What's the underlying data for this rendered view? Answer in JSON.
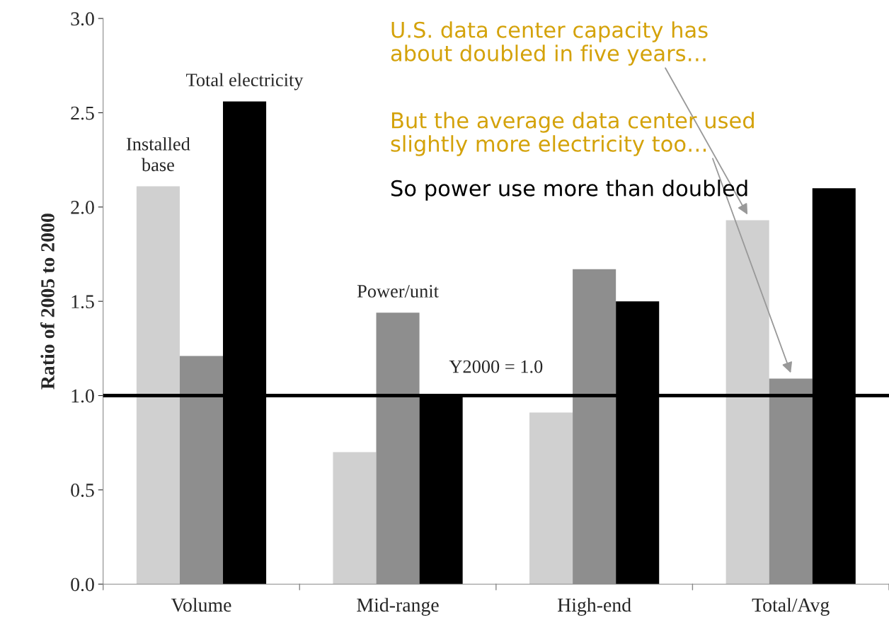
{
  "chart_data": {
    "type": "bar",
    "ylabel": "Ratio of 2005 to 2000",
    "categories": [
      "Volume",
      "Mid-range",
      "High-end",
      "Total/Avg"
    ],
    "series": [
      {
        "name": "Installed base",
        "color": "#d0d0d0",
        "values": [
          2.11,
          0.7,
          0.91,
          1.93
        ]
      },
      {
        "name": "Power/unit",
        "color": "#8e8e8e",
        "values": [
          1.21,
          1.44,
          1.67,
          1.09
        ]
      },
      {
        "name": "Total electricity",
        "color": "#000000",
        "values": [
          2.56,
          1.0,
          1.5,
          2.1
        ]
      }
    ],
    "ylim": [
      0,
      3.0
    ],
    "yticks": [
      {
        "value": 0,
        "label": "0.0"
      },
      {
        "value": 0.5,
        "label": "0.5"
      },
      {
        "value": 1,
        "label": "1.0"
      },
      {
        "value": 1.5,
        "label": "1.5"
      },
      {
        "value": 2,
        "label": "2.0"
      },
      {
        "value": 2.5,
        "label": "2.5"
      },
      {
        "value": 3,
        "label": "3.0"
      }
    ],
    "ref_lines": [
      {
        "axis": "y",
        "value": 1.0,
        "label": "Y2000 = 1.0",
        "color": "#000000"
      }
    ],
    "annotations": [
      "U.S. data center capacity has\nabout doubled in five years…",
      "But the average data center used\nslightly more electricity too…",
      "So power use more than doubled"
    ],
    "grid": false,
    "legend": false
  }
}
